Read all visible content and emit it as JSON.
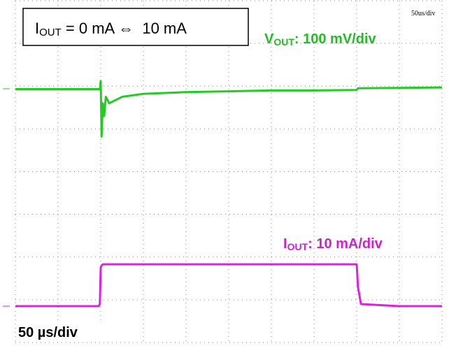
{
  "chart_data": {
    "type": "line",
    "annotations": {
      "condition": {
        "symbol": "I",
        "subscript": "OUT",
        "text": " = 0 mA ⇔  10 mA"
      },
      "vout_scale": {
        "symbol": "V",
        "subscript": "OUT",
        "text": ": 100 mV/div"
      },
      "iout_scale": {
        "symbol": "I",
        "subscript": "OUT",
        "text": ": 10 mA/div"
      },
      "time_scale": "50 µs/div",
      "scope_timebase": "50us/div"
    },
    "x": [
      0,
      1.95,
      1.98,
      2.0,
      2.02,
      2.05,
      2.08,
      2.12,
      2.2,
      2.5,
      3,
      4,
      5,
      6,
      7,
      8,
      8.03,
      8.1,
      9,
      10
    ],
    "series": [
      {
        "name": "VOUT",
        "color": "#22cc22",
        "values": [
          5.93,
          5.93,
          5.93,
          6.12,
          4.82,
          5.6,
          5.3,
          5.75,
          5.6,
          5.75,
          5.82,
          5.86,
          5.88,
          5.9,
          5.9,
          5.91,
          5.95,
          5.95,
          5.96,
          5.97
        ]
      },
      {
        "name": "IOUT",
        "color": "#dd22dd",
        "values": [
          0.85,
          0.85,
          0.9,
          1.75,
          1.8,
          1.83,
          1.83,
          1.83,
          1.83,
          1.83,
          1.83,
          1.83,
          1.83,
          1.83,
          1.83,
          1.83,
          1.3,
          0.9,
          0.85,
          0.85
        ]
      }
    ],
    "xlim": [
      0,
      10
    ],
    "ylim": [
      0,
      8
    ],
    "grid": true
  }
}
